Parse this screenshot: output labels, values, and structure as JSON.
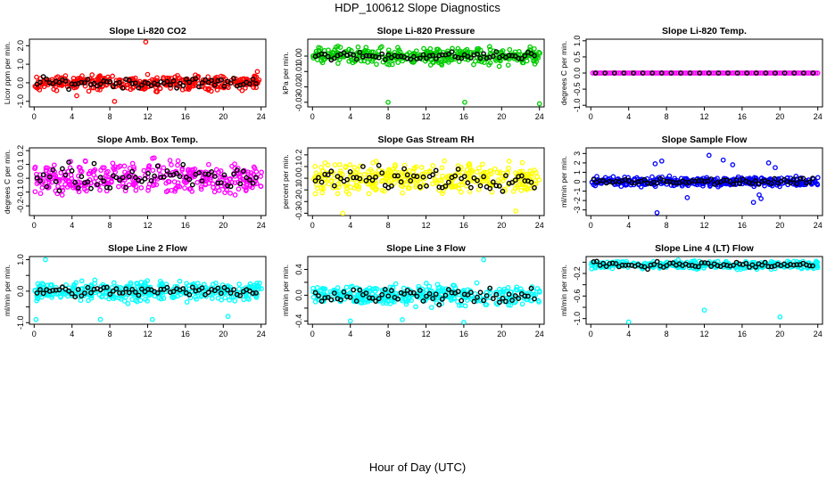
{
  "main_title": "HDP_100612  Slope Diagnostics",
  "xlabel": "Hour of Day (UTC)",
  "chart_data": [
    {
      "type": "scatter",
      "title": "Slope Li-820 CO2",
      "ylabel": "Licor ppm per min.",
      "color": "#ff0000",
      "xlim": [
        -0.5,
        24.5
      ],
      "xticks": [
        0,
        4,
        8,
        12,
        16,
        20,
        24
      ],
      "ylim": [
        -1.3,
        2.35
      ],
      "yticks": [
        -1.0,
        0.0,
        1.0,
        2.0
      ],
      "ytick_labels": [
        "-1.0",
        "0.0",
        "1.0",
        "2.0"
      ],
      "spread": 0.28,
      "black_spread": 0.2,
      "outliers": [
        [
          11.8,
          2.2
        ],
        [
          8.5,
          -1.0
        ],
        [
          23.6,
          0.6
        ],
        [
          4.5,
          -0.7
        ]
      ]
    },
    {
      "type": "scatter",
      "title": "Slope Li-820 Pressure",
      "ylabel": "kPa per min.",
      "color": "#00cc00",
      "xlim": [
        -0.5,
        24.5
      ],
      "xticks": [
        0,
        4,
        8,
        12,
        16,
        20,
        24
      ],
      "ylim": [
        -0.033,
        0.011
      ],
      "yticks": [
        -0.03,
        -0.02,
        -0.01,
        0.0
      ],
      "ytick_labels": [
        "-0.03",
        "-0.02",
        "-0.01",
        "0.00"
      ],
      "spread": 0.004,
      "black_spread": 0.002,
      "outliers": [
        [
          8.0,
          -0.03
        ],
        [
          16.1,
          -0.03
        ],
        [
          24.0,
          -0.031
        ]
      ]
    },
    {
      "type": "scatter",
      "title": "Slope Li-820 Temp.",
      "ylabel": "degrees C per min.",
      "color": "#ff00ff",
      "xlim": [
        -0.5,
        24.5
      ],
      "xticks": [
        0,
        4,
        8,
        12,
        16,
        20,
        24
      ],
      "ylim": [
        -1.05,
        1.05
      ],
      "yticks": [
        -1.0,
        -0.5,
        0.0,
        0.5,
        1.0
      ],
      "ytick_labels": [
        "-1.0",
        "-0.5",
        "0.0",
        "0.5",
        "1.0"
      ],
      "spread": 0.0,
      "black_spread": 0.0,
      "outliers": []
    },
    {
      "type": "scatter",
      "title": "Slope Amb. Box Temp.",
      "ylabel": "degrees C per min.",
      "color": "#ff00ff",
      "xlim": [
        -0.5,
        24.5
      ],
      "xticks": [
        0,
        4,
        8,
        12,
        16,
        20,
        24
      ],
      "ylim": [
        -0.27,
        0.22
      ],
      "yticks": [
        -0.2,
        -0.1,
        0.0,
        0.1,
        0.2
      ],
      "ytick_labels": [
        "-0.2",
        "-0.1",
        "0.0",
        "0.1",
        "0.2"
      ],
      "spread": 0.085,
      "black_spread": 0.07,
      "outliers": []
    },
    {
      "type": "scatter",
      "title": "Slope Gas Stream RH",
      "ylabel": "percent per min.",
      "color": "#ffff00",
      "xlim": [
        -0.5,
        24.5
      ],
      "xticks": [
        0,
        4,
        8,
        12,
        16,
        20,
        24
      ],
      "ylim": [
        -0.32,
        0.26
      ],
      "yticks": [
        -0.3,
        -0.2,
        -0.1,
        0.0,
        0.1,
        0.2
      ],
      "ytick_labels": [
        "-0.3",
        "-0.2",
        "-0.1",
        "0.0",
        "0.1",
        "0.2"
      ],
      "spread": 0.09,
      "black_spread": 0.07,
      "outliers": [
        [
          3.2,
          -0.3
        ],
        [
          21.5,
          -0.28
        ]
      ]
    },
    {
      "type": "scatter",
      "title": "Slope Sample Flow",
      "ylabel": "ml/min per min.",
      "color": "#0000ff",
      "xlim": [
        -0.5,
        24.5
      ],
      "xticks": [
        0,
        4,
        8,
        12,
        16,
        20,
        24
      ],
      "ylim": [
        -3.6,
        3.6
      ],
      "yticks": [
        -3,
        -2,
        -1,
        0,
        1,
        2,
        3
      ],
      "ytick_labels": [
        "-3",
        "-2",
        "-1",
        "0",
        "1",
        "2",
        "3"
      ],
      "spread": 0.35,
      "black_spread": 0.25,
      "outliers": [
        [
          7.0,
          -3.3
        ],
        [
          12.5,
          2.8
        ],
        [
          14.0,
          2.3
        ],
        [
          17.2,
          -2.2
        ],
        [
          18.0,
          -1.8
        ],
        [
          7.5,
          2.2
        ],
        [
          6.8,
          1.9
        ],
        [
          19.5,
          1.5
        ],
        [
          15.0,
          1.8
        ],
        [
          10.2,
          -1.7
        ],
        [
          18.8,
          2.0
        ],
        [
          17.8,
          -1.4
        ]
      ]
    },
    {
      "type": "scatter",
      "title": "Slope Line 2 Flow",
      "ylabel": "ml/min per min.",
      "color": "#00ffff",
      "xlim": [
        -0.5,
        24.5
      ],
      "xticks": [
        0,
        4,
        8,
        12,
        16,
        20,
        24
      ],
      "ylim": [
        -1.05,
        1.1
      ],
      "yticks": [
        -1.0,
        -0.5,
        0.0,
        0.5,
        1.0
      ],
      "ytick_labels": [
        "-1.0",
        "",
        "0.0",
        "",
        "1.0"
      ],
      "spread": 0.22,
      "black_spread": 0.12,
      "outliers": [
        [
          1.2,
          1.0
        ],
        [
          0.2,
          -0.9
        ],
        [
          7.0,
          -0.9
        ],
        [
          20.5,
          -0.8
        ],
        [
          12.5,
          -0.9
        ]
      ]
    },
    {
      "type": "scatter",
      "title": "Slope Line 3 Flow",
      "ylabel": "ml/min per min.",
      "color": "#00ffff",
      "xlim": [
        -0.5,
        24.5
      ],
      "xticks": [
        0,
        4,
        8,
        12,
        16,
        20,
        24
      ],
      "ylim": [
        -0.45,
        0.6
      ],
      "yticks": [
        -0.4,
        -0.2,
        0.0,
        0.2,
        0.4
      ],
      "ytick_labels": [
        "-0.4",
        "",
        "0.0",
        "",
        "0.4"
      ],
      "spread": 0.11,
      "black_spread": 0.1,
      "outliers": [
        [
          18.1,
          0.55
        ],
        [
          4.0,
          -0.4
        ],
        [
          16.0,
          -0.42
        ],
        [
          9.5,
          -0.38
        ]
      ]
    },
    {
      "type": "scatter",
      "title": "Slope Line 4 (LT) Flow",
      "ylabel": "ml/min per min.",
      "color": "#00ffff",
      "xlim": [
        -0.5,
        24.5
      ],
      "xticks": [
        0,
        4,
        8,
        12,
        16,
        20,
        24
      ],
      "ylim": [
        -1.1,
        0.1
      ],
      "yticks": [
        -1.0,
        -0.8,
        -0.6,
        -0.4,
        -0.2,
        0.0
      ],
      "ytick_labels": [
        "-1.0",
        "",
        "-0.6",
        "",
        "-0.2",
        ""
      ],
      "center": -0.05,
      "spread": 0.05,
      "black_spread": 0.04,
      "outliers": [
        [
          4.0,
          -1.06
        ],
        [
          12.0,
          -0.85
        ],
        [
          20.0,
          -0.97
        ]
      ]
    }
  ]
}
